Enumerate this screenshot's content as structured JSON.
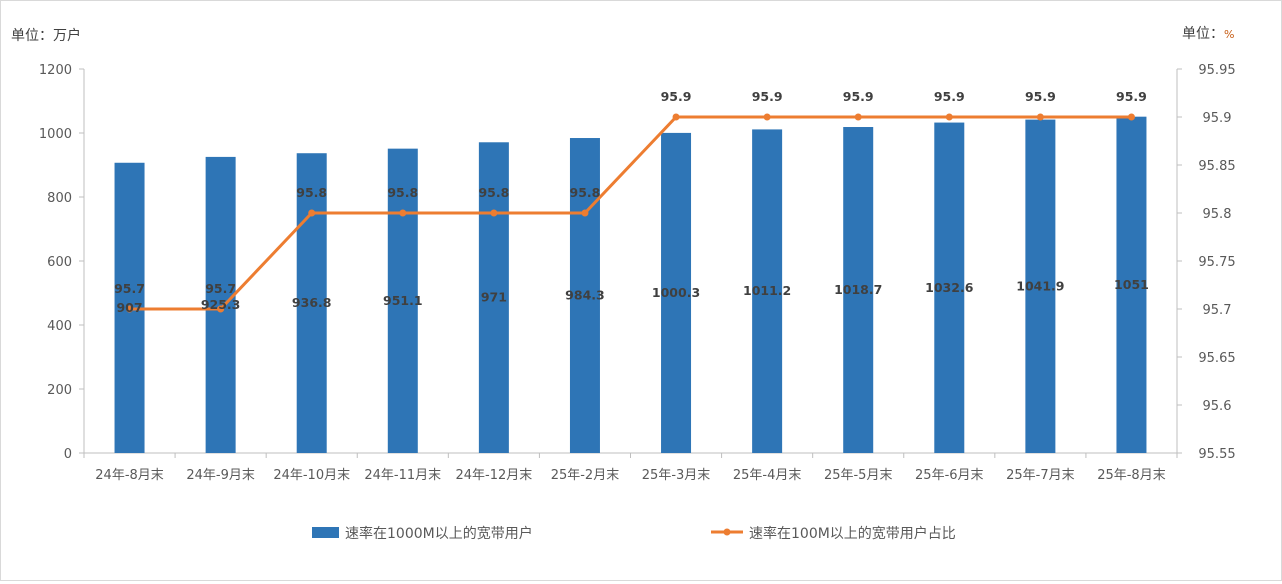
{
  "chart_data": {
    "type": "bar+line",
    "left_unit": "单位：万户",
    "right_unit_prefix": "单位：",
    "right_unit_symbol": "%",
    "categories": [
      "24年-8月末",
      "24年-9月末",
      "24年-10月末",
      "24年-11月末",
      "24年-12月末",
      "25年-2月末",
      "25年-3月末",
      "25年-4月末",
      "25年-5月末",
      "25年-6月末",
      "25年-7月末",
      "25年-8月末"
    ],
    "series": [
      {
        "name": "速率在1000M以上的宽带用户",
        "type": "bar",
        "axis": "left",
        "color": "#2e75b6",
        "values": [
          907,
          925.3,
          936.8,
          951.1,
          971,
          984.3,
          1000.3,
          1011.2,
          1018.7,
          1032.6,
          1041.9,
          1051
        ]
      },
      {
        "name": "速率在100M以上的宽带用户占比",
        "type": "line",
        "axis": "right",
        "color": "#ed7d31",
        "values": [
          95.7,
          95.7,
          95.8,
          95.8,
          95.8,
          95.8,
          95.9,
          95.9,
          95.9,
          95.9,
          95.9,
          95.9
        ]
      }
    ],
    "y_left": {
      "range": [
        0,
        1200
      ],
      "ticks": [
        "0",
        "200",
        "400",
        "600",
        "800",
        "1000",
        "1200"
      ]
    },
    "y_right": {
      "range": [
        95.55,
        95.95
      ],
      "ticks": [
        "95.55",
        "95.6",
        "95.65",
        "95.7",
        "95.75",
        "95.8",
        "95.85",
        "95.9",
        "95.95"
      ]
    },
    "grid": false,
    "legend": "bottom"
  }
}
